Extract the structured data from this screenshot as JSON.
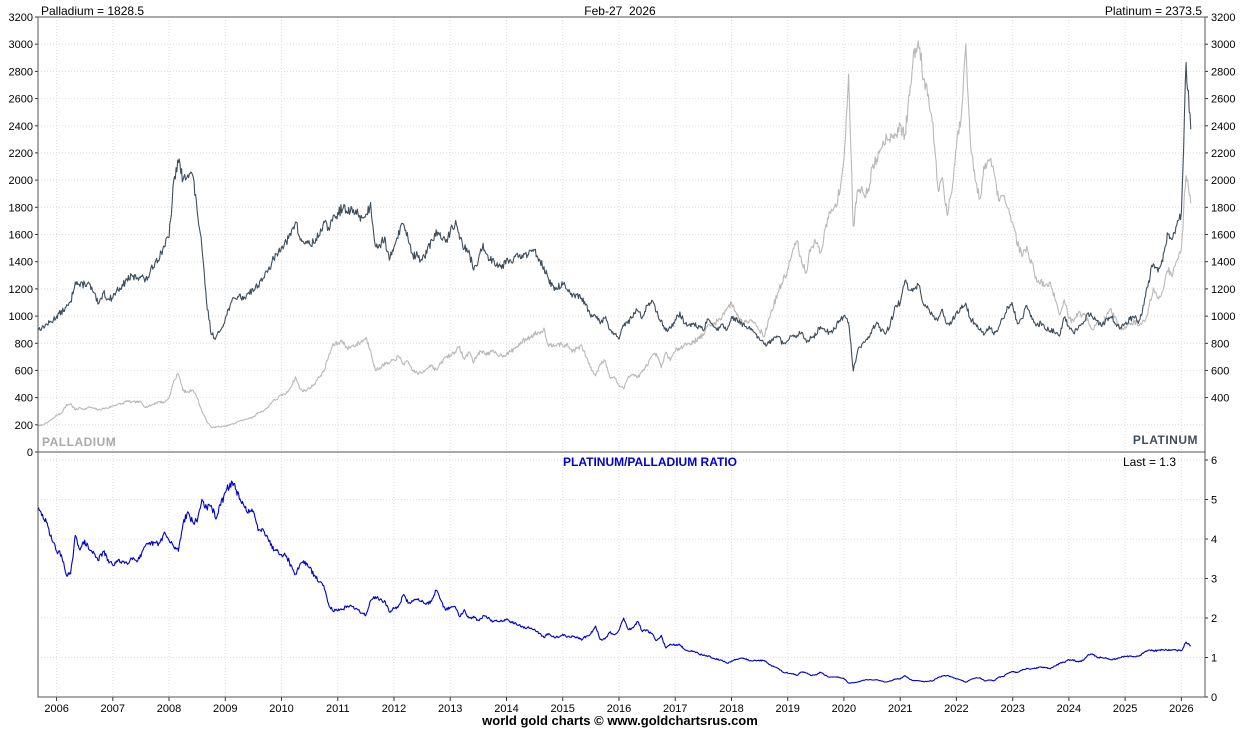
{
  "header": {
    "palladium_value_label": "Palladium = 1828.5",
    "date_label": "Feb-27  2026",
    "platinum_value_label": "Platinum = 2373.5"
  },
  "price_chart": {
    "palladium_series_label": "PALLADIUM",
    "platinum_series_label": "PLATINUM"
  },
  "ratio_chart": {
    "title": "PLATINUM/PALLADIUM RATIO",
    "last_value_label": "Last = 1.3"
  },
  "footer": {
    "credit": "world gold charts © www.goldchartsrus.com"
  },
  "colors": {
    "palladium_line": "#b9b9b9",
    "platinum_line": "#3f4e5c",
    "ratio_line": "#0000cc",
    "grid": "#dedede",
    "border": "#555555",
    "axis_text": "#000000"
  },
  "chart_data": [
    {
      "type": "line",
      "title": "Palladium and Platinum spot prices (USD/oz), monthly, 2005-2026",
      "x_start": 2005.667,
      "x_step_years": 0.0833333,
      "x_axis_range": [
        2005.67,
        2026.42
      ],
      "x_tick_labels": [
        "2006",
        "2007",
        "2008",
        "2009",
        "2010",
        "2011",
        "2012",
        "2013",
        "2014",
        "2015",
        "2016",
        "2017",
        "2018",
        "2019",
        "2020",
        "2021",
        "2022",
        "2023",
        "2024",
        "2025",
        "2026"
      ],
      "ylim": [
        0,
        3200
      ],
      "y_ticks_left": [
        0,
        200,
        400,
        600,
        800,
        1000,
        1200,
        1400,
        1600,
        1800,
        2000,
        2200,
        2400,
        2600,
        2800,
        3000,
        3200
      ],
      "y_ticks_right": [
        400,
        600,
        800,
        1000,
        1200,
        1400,
        1600,
        1800,
        2000,
        2200,
        2400,
        2600,
        2800,
        3000,
        3200
      ],
      "grid": true,
      "legend_position": "inside-bottom",
      "series": [
        {
          "name": "Palladium",
          "color_key": "palladium_line",
          "last_value": 1828.5,
          "values": [
            190,
            200,
            215,
            240,
            270,
            285,
            340,
            355,
            310,
            325,
            315,
            330,
            320,
            310,
            320,
            325,
            340,
            350,
            355,
            375,
            365,
            370,
            365,
            330,
            340,
            360,
            370,
            365,
            400,
            520,
            580,
            450,
            440,
            460,
            400,
            300,
            230,
            180,
            185,
            185,
            190,
            200,
            210,
            230,
            235,
            250,
            255,
            290,
            300,
            325,
            370,
            390,
            420,
            430,
            480,
            550,
            460,
            450,
            470,
            500,
            550,
            590,
            700,
            790,
            800,
            820,
            760,
            780,
            790,
            810,
            840,
            750,
            600,
            620,
            650,
            650,
            680,
            700,
            650,
            660,
            600,
            580,
            580,
            620,
            640,
            600,
            650,
            700,
            710,
            740,
            770,
            680,
            740,
            660,
            730,
            740,
            720,
            740,
            720,
            710,
            720,
            740,
            770,
            800,
            830,
            840,
            870,
            880,
            905,
            780,
            790,
            800,
            780,
            790,
            740,
            760,
            780,
            700,
            620,
            560,
            650,
            680,
            550,
            550,
            490,
            465,
            560,
            570,
            550,
            590,
            640,
            700,
            720,
            620,
            730,
            680,
            740,
            770,
            790,
            800,
            810,
            840,
            860,
            930,
            940,
            960,
            1000,
            1060,
            1090,
            1030,
            960,
            960,
            980,
            950,
            900,
            850,
            980,
            1080,
            1180,
            1260,
            1340,
            1470,
            1550,
            1380,
            1330,
            1520,
            1540,
            1470,
            1630,
            1760,
            1790,
            1910,
            2150,
            2750,
            1650,
            1950,
            1920,
            1900,
            2080,
            2150,
            2250,
            2320,
            2330,
            2340,
            2390,
            2330,
            2620,
            2950,
            3000,
            2750,
            2650,
            2400,
            1950,
            2000,
            1750,
            1900,
            2250,
            2450,
            2980,
            2250,
            2000,
            1850,
            2100,
            2150,
            2080,
            1850,
            1900,
            1790,
            1700,
            1530,
            1450,
            1500,
            1400,
            1280,
            1250,
            1220,
            1250,
            1130,
            1000,
            1130,
            980,
            950,
            1020,
            1010,
            980,
            900,
            960,
            930,
            1000,
            1050,
            980,
            910,
            920,
            940,
            960,
            930,
            960,
            1050,
            1200,
            1130,
            1180,
            1350,
            1300,
            1400,
            1500,
            2050,
            1828.5
          ]
        },
        {
          "name": "Platinum",
          "color_key": "platinum_line",
          "last_value": 2373.5,
          "values": [
            900,
            920,
            940,
            960,
            1000,
            1030,
            1060,
            1100,
            1260,
            1220,
            1240,
            1230,
            1160,
            1080,
            1180,
            1120,
            1140,
            1200,
            1220,
            1270,
            1290,
            1280,
            1300,
            1260,
            1320,
            1400,
            1440,
            1520,
            1580,
            1980,
            2150,
            1990,
            2060,
            2040,
            1780,
            1500,
            1100,
            870,
            840,
            900,
            980,
            1080,
            1130,
            1150,
            1130,
            1180,
            1190,
            1230,
            1280,
            1320,
            1400,
            1450,
            1520,
            1540,
            1600,
            1700,
            1560,
            1540,
            1530,
            1540,
            1600,
            1680,
            1650,
            1720,
            1750,
            1800,
            1760,
            1780,
            1760,
            1730,
            1740,
            1820,
            1530,
            1520,
            1580,
            1400,
            1520,
            1620,
            1680,
            1580,
            1450,
            1440,
            1410,
            1470,
            1550,
            1620,
            1580,
            1540,
            1620,
            1690,
            1580,
            1500,
            1470,
            1340,
            1410,
            1520,
            1440,
            1410,
            1390,
            1360,
            1420,
            1410,
            1440,
            1430,
            1450,
            1470,
            1490,
            1420,
            1360,
            1260,
            1210,
            1210,
            1240,
            1190,
            1140,
            1150,
            1130,
            1080,
            990,
            1000,
            950,
            990,
            900,
            870,
            830,
            930,
            960,
            1000,
            1050,
            980,
            1080,
            1120,
            1030,
            960,
            900,
            910,
            970,
            1020,
            950,
            930,
            940,
            920,
            900,
            970,
            930,
            910,
            930,
            900,
            990,
            980,
            950,
            920,
            900,
            870,
            830,
            790,
            800,
            830,
            850,
            790,
            820,
            860,
            850,
            890,
            810,
            840,
            860,
            930,
            890,
            880,
            910,
            960,
            1000,
            960,
            600,
            750,
            800,
            830,
            900,
            950,
            890,
            870,
            960,
            1070,
            1100,
            1250,
            1190,
            1200,
            1230,
            1080,
            1060,
            990,
            960,
            1050,
            940,
            960,
            1030,
            1050,
            1100,
            980,
            950,
            900,
            870,
            930,
            860,
            920,
            990,
            1070,
            1080,
            950,
            980,
            1080,
            1000,
            930,
            950,
            900,
            900,
            880,
            850,
            1000,
            920,
            880,
            910,
            940,
            1030,
            990,
            960,
            930,
            980,
            1000,
            940,
            910,
            950,
            980,
            990,
            960,
            1080,
            1250,
            1400,
            1330,
            1400,
            1600,
            1550,
            1650,
            1750,
            2850,
            2373.5
          ]
        }
      ]
    },
    {
      "type": "line",
      "title": "PLATINUM/PALLADIUM RATIO",
      "x_start": 2005.667,
      "x_step_years": 0.0833333,
      "x_axis_range": [
        2005.67,
        2026.42
      ],
      "ylim": [
        0,
        6.2
      ],
      "y_ticks_right": [
        0,
        1,
        2,
        3,
        4,
        5,
        6
      ],
      "grid": true,
      "series": [
        {
          "name": "Platinum/Palladium ratio",
          "color_key": "ratio_line",
          "last_value": 1.3,
          "values": [
            4.74,
            4.6,
            4.37,
            4.0,
            3.7,
            3.61,
            3.12,
            3.1,
            4.06,
            3.75,
            3.94,
            3.73,
            3.63,
            3.48,
            3.69,
            3.45,
            3.35,
            3.43,
            3.44,
            3.39,
            3.53,
            3.46,
            3.56,
            3.82,
            3.88,
            3.89,
            3.89,
            4.16,
            3.95,
            3.81,
            3.71,
            4.42,
            4.68,
            4.43,
            4.45,
            5.0,
            4.78,
            4.83,
            4.54,
            4.86,
            5.16,
            5.4,
            5.38,
            5.0,
            4.81,
            4.72,
            4.67,
            4.24,
            4.27,
            4.06,
            3.78,
            3.72,
            3.62,
            3.58,
            3.33,
            3.09,
            3.39,
            3.42,
            3.26,
            3.08,
            2.91,
            2.85,
            2.36,
            2.18,
            2.19,
            2.2,
            2.32,
            2.28,
            2.23,
            2.14,
            2.07,
            2.43,
            2.55,
            2.45,
            2.43,
            2.15,
            2.24,
            2.31,
            2.58,
            2.39,
            2.42,
            2.48,
            2.43,
            2.37,
            2.42,
            2.7,
            2.43,
            2.2,
            2.28,
            2.28,
            2.05,
            2.21,
            1.99,
            2.03,
            1.93,
            2.05,
            2.0,
            1.91,
            1.93,
            1.92,
            1.97,
            1.91,
            1.87,
            1.79,
            1.75,
            1.75,
            1.71,
            1.61,
            1.5,
            1.62,
            1.53,
            1.51,
            1.59,
            1.51,
            1.54,
            1.51,
            1.45,
            1.54,
            1.6,
            1.79,
            1.46,
            1.46,
            1.64,
            1.58,
            1.69,
            2.0,
            1.71,
            1.75,
            1.91,
            1.66,
            1.69,
            1.6,
            1.43,
            1.55,
            1.23,
            1.34,
            1.31,
            1.32,
            1.2,
            1.16,
            1.16,
            1.1,
            1.05,
            1.04,
            0.99,
            0.95,
            0.93,
            0.85,
            0.91,
            0.95,
            0.99,
            0.96,
            0.92,
            0.92,
            0.92,
            0.93,
            0.82,
            0.77,
            0.72,
            0.63,
            0.61,
            0.59,
            0.55,
            0.64,
            0.61,
            0.55,
            0.56,
            0.63,
            0.55,
            0.5,
            0.51,
            0.5,
            0.47,
            0.35,
            0.36,
            0.38,
            0.42,
            0.44,
            0.43,
            0.44,
            0.4,
            0.38,
            0.41,
            0.46,
            0.46,
            0.54,
            0.45,
            0.41,
            0.41,
            0.39,
            0.4,
            0.41,
            0.49,
            0.53,
            0.54,
            0.51,
            0.46,
            0.43,
            0.37,
            0.44,
            0.48,
            0.49,
            0.41,
            0.43,
            0.41,
            0.5,
            0.52,
            0.6,
            0.64,
            0.62,
            0.68,
            0.72,
            0.71,
            0.73,
            0.76,
            0.74,
            0.72,
            0.78,
            0.85,
            0.88,
            0.94,
            0.93,
            0.89,
            0.93,
            1.05,
            1.1,
            1.0,
            1.0,
            0.98,
            0.95,
            0.96,
            1.0,
            1.03,
            1.04,
            1.03,
            1.03,
            1.13,
            1.19,
            1.17,
            1.18,
            1.19,
            1.19,
            1.19,
            1.18,
            1.17,
            1.39,
            1.3
          ]
        }
      ]
    }
  ]
}
